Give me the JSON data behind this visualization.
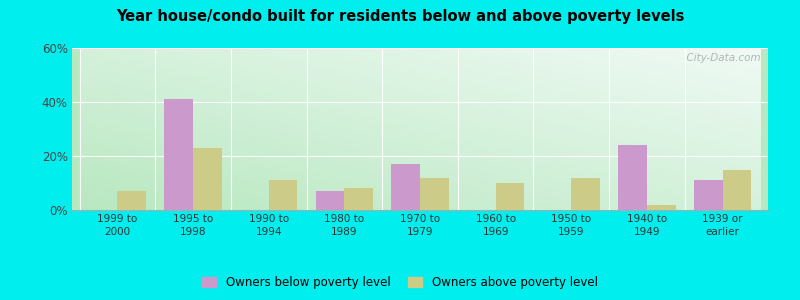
{
  "title": "Year house/condo built for residents below and above poverty levels",
  "categories": [
    "1999 to\n2000",
    "1995 to\n1998",
    "1990 to\n1994",
    "1980 to\n1989",
    "1970 to\n1979",
    "1960 to\n1969",
    "1950 to\n1959",
    "1940 to\n1949",
    "1939 or\nearlier"
  ],
  "below_poverty": [
    0,
    41,
    0,
    7,
    17,
    0,
    0,
    24,
    11
  ],
  "above_poverty": [
    7,
    23,
    11,
    8,
    12,
    10,
    12,
    2,
    15
  ],
  "below_color": "#cc99cc",
  "above_color": "#cccc88",
  "ylim": [
    0,
    60
  ],
  "yticks": [
    0,
    20,
    40,
    60
  ],
  "ytick_labels": [
    "0%",
    "20%",
    "40%",
    "60%"
  ],
  "outer_bg": "#00eeee",
  "watermark": "  City-Data.com",
  "legend_below": "Owners below poverty level",
  "legend_above": "Owners above poverty level",
  "bar_width": 0.38,
  "grad_bottom_left": "#b0e8c0",
  "grad_top_right": "#f0faf5"
}
